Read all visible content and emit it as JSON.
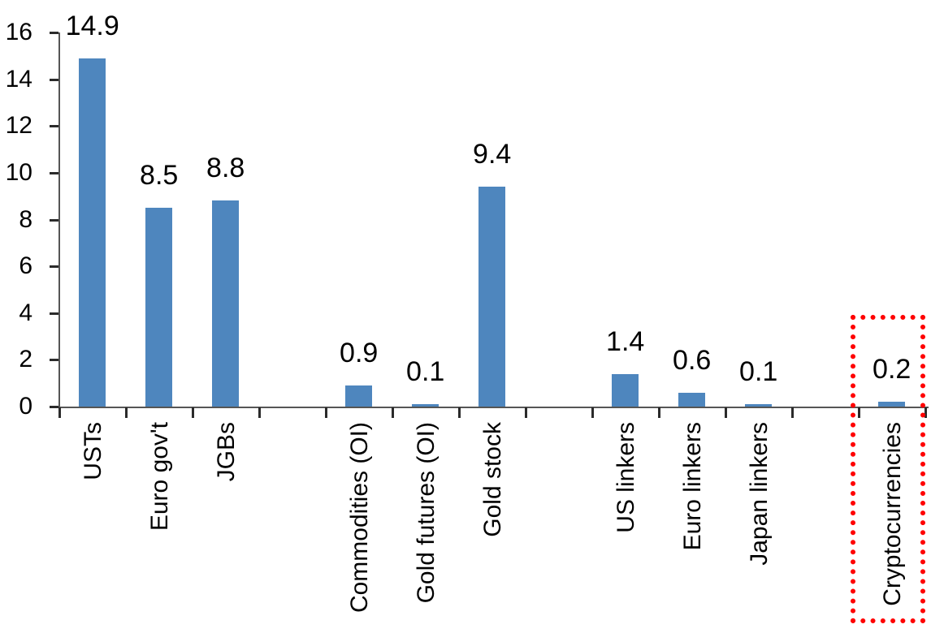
{
  "chart_data": {
    "type": "bar",
    "title": "",
    "xlabel": "",
    "ylabel": "",
    "ylim": [
      0,
      16
    ],
    "yticks": [
      0,
      2,
      4,
      6,
      8,
      10,
      12,
      14,
      16
    ],
    "grid": false,
    "legend": null,
    "bar_color": "#4e86be",
    "axis_color": "#555555",
    "tick_color": "#2b2b2b",
    "text_color": "#000000",
    "highlight_box_color": "#ff0000",
    "total_slots": 13,
    "value_label_decimals": 1,
    "categories": [
      {
        "label": "USTs",
        "value": 14.9,
        "value_label": "14.9",
        "slot": 0,
        "highlighted": false
      },
      {
        "label": "Euro gov't",
        "value": 8.5,
        "value_label": "8.5",
        "slot": 1,
        "highlighted": false
      },
      {
        "label": "JGBs",
        "value": 8.8,
        "value_label": "8.8",
        "slot": 2,
        "highlighted": false
      },
      {
        "label": "Commodities (OI)",
        "value": 0.9,
        "value_label": "0.9",
        "slot": 4,
        "highlighted": false
      },
      {
        "label": "Gold futures (OI)",
        "value": 0.1,
        "value_label": "0.1",
        "slot": 5,
        "highlighted": false
      },
      {
        "label": "Gold stock",
        "value": 9.4,
        "value_label": "9.4",
        "slot": 6,
        "highlighted": false
      },
      {
        "label": "US linkers",
        "value": 1.4,
        "value_label": "1.4",
        "slot": 8,
        "highlighted": false
      },
      {
        "label": "Euro linkers",
        "value": 0.6,
        "value_label": "0.6",
        "slot": 9,
        "highlighted": false
      },
      {
        "label": "Japan linkers",
        "value": 0.1,
        "value_label": "0.1",
        "slot": 10,
        "highlighted": false
      },
      {
        "label": "Cryptocurrencies",
        "value": 0.2,
        "value_label": "0.2",
        "slot": 12,
        "highlighted": true
      }
    ]
  }
}
